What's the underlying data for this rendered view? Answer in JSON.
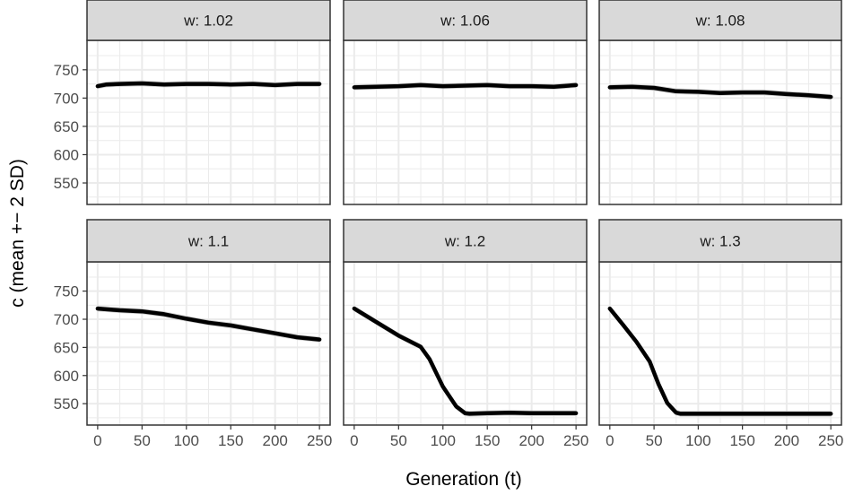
{
  "chart_data": {
    "type": "line",
    "xlabel": "Generation (t)",
    "ylabel": "c (mean +− 2 SD)",
    "xlim": [
      -12,
      262
    ],
    "ylim": [
      512,
      802
    ],
    "x_ticks": [
      0,
      50,
      100,
      150,
      200,
      250
    ],
    "y_ticks": [
      550,
      600,
      650,
      700,
      750
    ],
    "grid": true,
    "band": "mean +/- 2 SD",
    "colors": {
      "line": "#000000",
      "band": "#cccccc",
      "strip": "#d9d9d9",
      "grid": "#ebebeb",
      "border": "#333333"
    },
    "panels": [
      {
        "label": "w: 1.02",
        "series": {
          "x": [
            0,
            10,
            25,
            50,
            75,
            100,
            125,
            150,
            175,
            200,
            225,
            250
          ],
          "y": [
            721,
            724,
            725,
            726,
            724,
            725,
            725,
            724,
            725,
            723,
            725,
            725
          ]
        }
      },
      {
        "label": "w: 1.06",
        "series": {
          "x": [
            0,
            25,
            50,
            75,
            100,
            125,
            150,
            175,
            200,
            225,
            250
          ],
          "y": [
            719,
            720,
            721,
            723,
            721,
            722,
            723,
            721,
            721,
            720,
            723
          ]
        }
      },
      {
        "label": "w: 1.08",
        "series": {
          "x": [
            0,
            25,
            50,
            75,
            100,
            125,
            150,
            175,
            200,
            225,
            250
          ],
          "y": [
            719,
            720,
            718,
            712,
            711,
            709,
            710,
            710,
            707,
            705,
            702
          ]
        }
      },
      {
        "label": "w: 1.1",
        "series": {
          "x": [
            0,
            25,
            50,
            75,
            100,
            125,
            150,
            175,
            200,
            225,
            250
          ],
          "y": [
            719,
            716,
            714,
            709,
            701,
            694,
            689,
            682,
            675,
            668,
            664
          ]
        }
      },
      {
        "label": "w: 1.2",
        "series": {
          "x": [
            0,
            25,
            50,
            75,
            85,
            100,
            115,
            125,
            130,
            150,
            175,
            200,
            225,
            250
          ],
          "y": [
            719,
            695,
            671,
            651,
            629,
            580,
            545,
            533,
            532,
            533,
            534,
            533,
            533,
            533
          ]
        }
      },
      {
        "label": "w: 1.3",
        "series": {
          "x": [
            0,
            15,
            30,
            45,
            55,
            65,
            75,
            80,
            100,
            125,
            150,
            175,
            200,
            225,
            250
          ],
          "y": [
            719,
            690,
            660,
            625,
            585,
            551,
            534,
            532,
            532,
            532,
            532,
            532,
            532,
            532,
            532
          ]
        }
      }
    ]
  }
}
